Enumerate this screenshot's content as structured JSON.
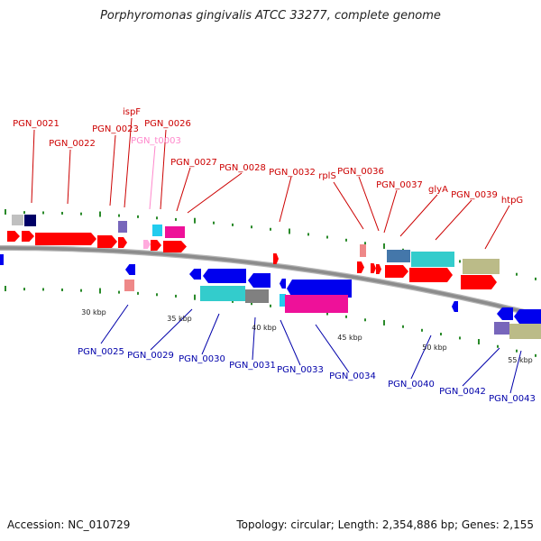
{
  "title": "Porphyromonas gingivalis ATCC 33277, complete genome",
  "footer": {
    "accession": "Accession: NC_010729",
    "stats": "Topology: circular; Length: 2,354,886 bp; Genes: 2,155"
  },
  "colors": {
    "backbone": "#8c8c8c",
    "top_label": "#cc0000",
    "bottom_label": "#0000aa",
    "trna_label": "#ff88cc",
    "tick": "#2a8a2a",
    "red": "#ff0000",
    "blue": "#0000ee",
    "cyan": "#33cccc",
    "magenta": "#ee1199",
    "gray": "#808080",
    "khaki": "#bbbb88",
    "steel": "#4477aa",
    "purple": "#7766bb",
    "navy": "#000066",
    "lightgray": "#c0c0c0",
    "salmon": "#ee8888",
    "pink": "#ffaadd"
  },
  "scale_labels": [
    {
      "text": "30 kbp"
    },
    {
      "text": "35 kbp"
    },
    {
      "text": "40 kbp"
    },
    {
      "text": "45 kbp"
    },
    {
      "text": "50 kbp"
    },
    {
      "text": "55 kbp"
    }
  ],
  "top_labels": [
    {
      "text": "PGN_0021"
    },
    {
      "text": "PGN_0022"
    },
    {
      "text": "PGN_0023"
    },
    {
      "text": "ispF"
    },
    {
      "text": "PGN_0026"
    },
    {
      "text": "PGN_t0003"
    },
    {
      "text": "PGN_0027"
    },
    {
      "text": "PGN_0028"
    },
    {
      "text": "PGN_0032"
    },
    {
      "text": "rplS"
    },
    {
      "text": "PGN_0036"
    },
    {
      "text": "PGN_0037"
    },
    {
      "text": "glyA"
    },
    {
      "text": "PGN_0039"
    },
    {
      "text": "htpG"
    }
  ],
  "bottom_labels": [
    {
      "text": "PGN_0025"
    },
    {
      "text": "PGN_0029"
    },
    {
      "text": "PGN_0030"
    },
    {
      "text": "PGN_0031"
    },
    {
      "text": "PGN_0033"
    },
    {
      "text": "PGN_0034"
    },
    {
      "text": "PGN_0040"
    },
    {
      "text": "PGN_0042"
    },
    {
      "text": "PGN_0043"
    }
  ]
}
